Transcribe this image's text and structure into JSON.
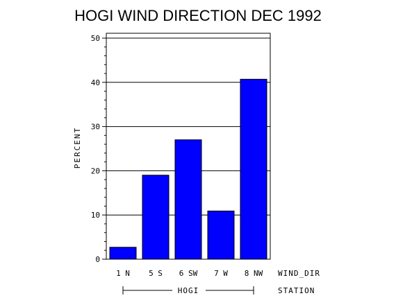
{
  "chart_data": {
    "type": "bar",
    "title": "HOGI WIND DIRECTION DEC 1992",
    "ylabel": "PERCENT",
    "ylim": [
      0,
      50
    ],
    "yticks": [
      0,
      10,
      20,
      30,
      40,
      50
    ],
    "grid": true,
    "categories": [
      "1 N",
      "5 S",
      "6 SW",
      "7 W",
      "8 NW"
    ],
    "values": [
      2.7,
      19.0,
      27.0,
      10.9,
      40.7
    ],
    "x_axis_name": "WIND_DIR",
    "group_label": "HOGI",
    "group_axis_name": "STATION",
    "bar_color": "#0000ff"
  }
}
